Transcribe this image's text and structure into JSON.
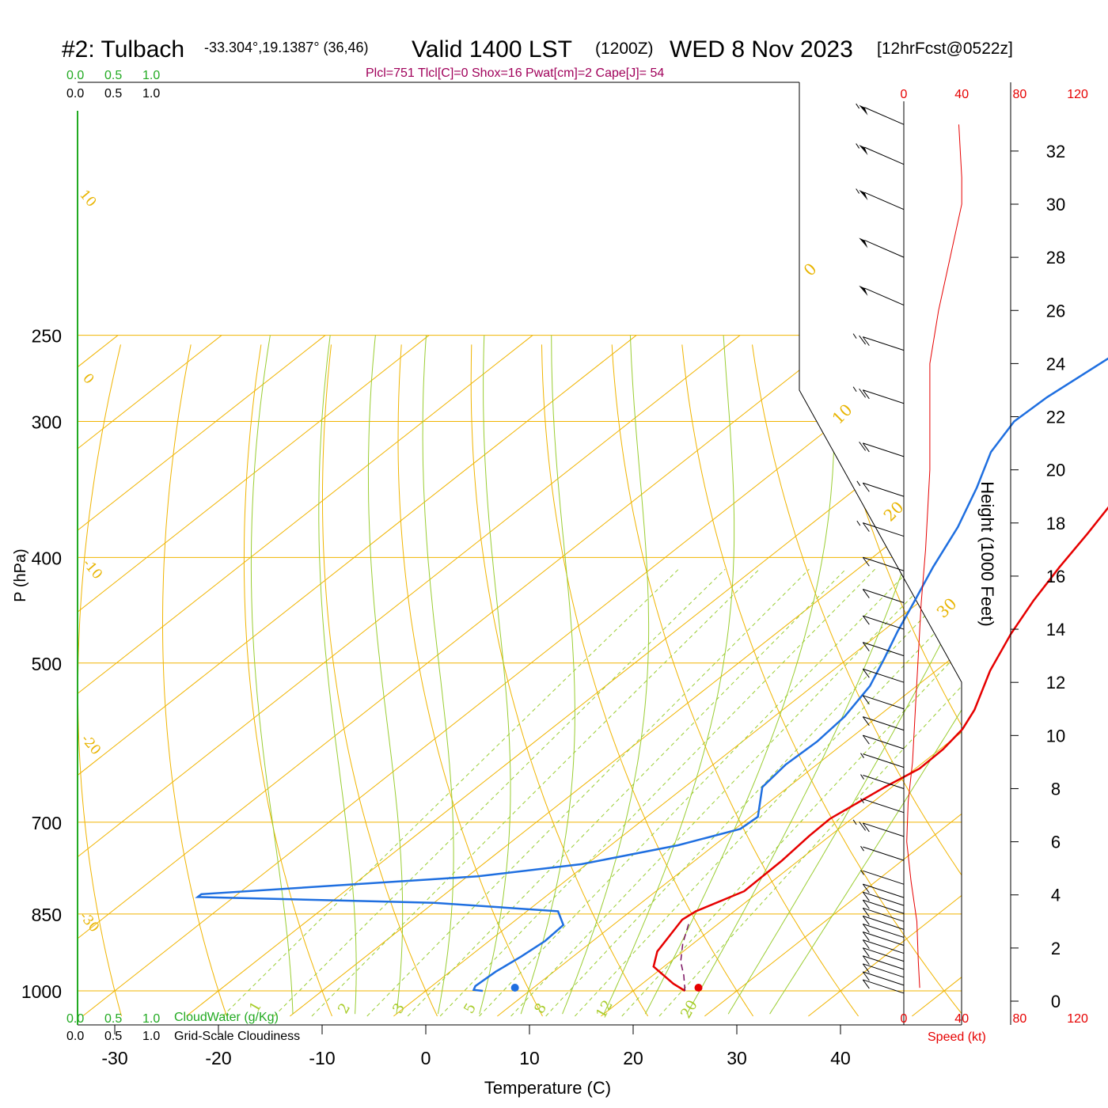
{
  "title": {
    "station": "#2: Tulbach",
    "coords": "-33.304°,19.1387° (36,46)",
    "valid": "Valid 1400 LST",
    "utc": "(1200Z)",
    "date": "WED 8 Nov 2023",
    "forecast": "[12hrFcst@0522z]"
  },
  "params_line": "Plcl=751 Tlcl[C]=0 Shox=16 Pwat[cm]=2 Cape[J]= 54",
  "colors": {
    "temperature": "#e60000",
    "dewpoint": "#1f6fe0",
    "parcel": "#7a1060",
    "isotherm": "#f0b400",
    "dry_adiabat": "#f0b400",
    "moist_adiabat": "#9acd32",
    "mixing_ratio": "#9acd32",
    "cloud_water": "#22aa22",
    "wind_speed": "#e60000"
  },
  "top_scales": {
    "cloud_water": [
      "0.0",
      "0.5",
      "1.0"
    ],
    "cloudiness": [
      "0.0",
      "0.5",
      "1.0"
    ]
  },
  "bottom_scales": {
    "cloud_water": [
      "0.0",
      "0.5",
      "1.0"
    ],
    "cloud_water_label": "CloudWater (g/Kg)",
    "cloudiness": [
      "0.0",
      "0.5",
      "1.0"
    ],
    "cloudiness_label": "Grid-Scale Cloudiness"
  },
  "chart_data": {
    "type": "line",
    "title": "#2: Tulbach",
    "xlabel": "Temperature (C)",
    "ylabel": "P (hPa)",
    "y2label": "Height (1000 Feet)",
    "speed_label": "Speed (kt)",
    "x_ticks": [
      -30,
      -20,
      -10,
      0,
      10,
      20,
      30,
      40
    ],
    "p_ticks": [
      250,
      300,
      400,
      500,
      700,
      850,
      1000
    ],
    "height_ticks": [
      0,
      2,
      4,
      6,
      8,
      10,
      12,
      14,
      16,
      18,
      20,
      22,
      24,
      26,
      28,
      30,
      32
    ],
    "speed_ticks": [
      0,
      40,
      80,
      120
    ],
    "isotherm_labels": [
      "0",
      "10",
      "20",
      "30"
    ],
    "dry_adiabat_labels": [
      "10",
      "0",
      "-10",
      "-20",
      "-30"
    ],
    "mixing_ratio_labels": [
      "1",
      "2",
      "3",
      "5",
      "8",
      "12",
      "20"
    ],
    "series": [
      {
        "name": "Temperature",
        "points": [
          [
            25.0,
            1000
          ],
          [
            23.0,
            985
          ],
          [
            19.0,
            950
          ],
          [
            17.5,
            920
          ],
          [
            16.0,
            860
          ],
          [
            16.3,
            845
          ],
          [
            18.5,
            810
          ],
          [
            18.4,
            760
          ],
          [
            18.0,
            720
          ],
          [
            17.9,
            695
          ],
          [
            19.3,
            650
          ],
          [
            20.4,
            625
          ],
          [
            20.3,
            600
          ],
          [
            19.7,
            575
          ],
          [
            18.5,
            552
          ],
          [
            15.2,
            508
          ],
          [
            12.7,
            470
          ],
          [
            10.8,
            438
          ],
          [
            9.2,
            408
          ],
          [
            7.8,
            380
          ],
          [
            5.9,
            348
          ],
          [
            4.1,
            320
          ],
          [
            2.3,
            296
          ],
          [
            0.5,
            272
          ],
          [
            -1.2,
            255
          ]
        ]
      },
      {
        "name": "Dewpoint",
        "points": [
          [
            5.5,
            1000
          ],
          [
            4.5,
            998
          ],
          [
            4.2,
            990
          ],
          [
            4.4,
            960
          ],
          [
            5.0,
            930
          ],
          [
            5.4,
            900
          ],
          [
            5.2,
            870
          ],
          [
            3.0,
            845
          ],
          [
            -10.0,
            830
          ],
          [
            -33.5,
            820
          ],
          [
            -33.5,
            815
          ],
          [
            -9.0,
            785
          ],
          [
            -0.5,
            765
          ],
          [
            6.5,
            735
          ],
          [
            10.5,
            710
          ],
          [
            10.7,
            692
          ],
          [
            7.5,
            650
          ],
          [
            7.0,
            620
          ],
          [
            7.2,
            590
          ],
          [
            6.8,
            560
          ],
          [
            5.5,
            525
          ],
          [
            3.5,
            495
          ],
          [
            1.5,
            468
          ],
          [
            -0.5,
            440
          ],
          [
            -3.0,
            408
          ],
          [
            -5.5,
            375
          ],
          [
            -8.5,
            345
          ],
          [
            -11.5,
            320
          ],
          [
            -13.0,
            300
          ],
          [
            -12.8,
            285
          ],
          [
            -11.5,
            260
          ]
        ]
      },
      {
        "name": "Parcel",
        "points": [
          [
            25.0,
            1000
          ],
          [
            23.0,
            968
          ],
          [
            21.0,
            940
          ],
          [
            19.0,
            905
          ],
          [
            17.0,
            865
          ]
        ]
      }
    ],
    "surface_markers": {
      "temperature": 26.3,
      "dewpoint": 8.6,
      "pressure": 1000
    },
    "wind_speed_profile": [
      [
        11,
        0.5
      ],
      [
        10,
        1.5
      ],
      [
        9,
        3
      ],
      [
        5,
        4.5
      ],
      [
        2,
        6
      ],
      [
        3,
        7.5
      ],
      [
        6,
        9
      ],
      [
        8,
        11
      ],
      [
        10,
        13
      ],
      [
        12,
        15
      ],
      [
        15,
        17
      ],
      [
        17,
        19
      ],
      [
        18,
        20
      ],
      [
        18,
        21
      ],
      [
        18,
        22
      ],
      [
        18,
        24
      ],
      [
        24,
        26
      ],
      [
        32,
        28
      ],
      [
        40,
        30
      ],
      [
        40,
        31
      ],
      [
        38,
        33
      ]
    ],
    "barbs": [
      [
        0.3,
        10
      ],
      [
        0.6,
        10
      ],
      [
        0.9,
        10
      ],
      [
        1.2,
        10
      ],
      [
        1.5,
        10
      ],
      [
        1.8,
        10
      ],
      [
        2.1,
        10
      ],
      [
        2.4,
        10
      ],
      [
        2.7,
        10
      ],
      [
        3.0,
        10
      ],
      [
        3.3,
        10
      ],
      [
        3.6,
        10
      ],
      [
        3.9,
        10
      ],
      [
        4.4,
        5
      ],
      [
        5.3,
        5
      ],
      [
        6.2,
        25
      ],
      [
        7.1,
        5
      ],
      [
        8.0,
        5
      ],
      [
        8.8,
        5
      ],
      [
        9.5,
        10
      ],
      [
        10.2,
        10
      ],
      [
        11.0,
        10
      ],
      [
        12.0,
        10
      ],
      [
        13.0,
        10
      ],
      [
        14.0,
        10
      ],
      [
        15.0,
        10
      ],
      [
        16.2,
        10
      ],
      [
        17.5,
        15
      ],
      [
        19.0,
        15
      ],
      [
        20.5,
        20
      ],
      [
        22.5,
        25
      ],
      [
        24.5,
        25
      ],
      [
        26.2,
        50
      ],
      [
        28.0,
        50
      ],
      [
        29.8,
        55
      ],
      [
        31.5,
        55
      ],
      [
        33.0,
        55
      ]
    ]
  }
}
